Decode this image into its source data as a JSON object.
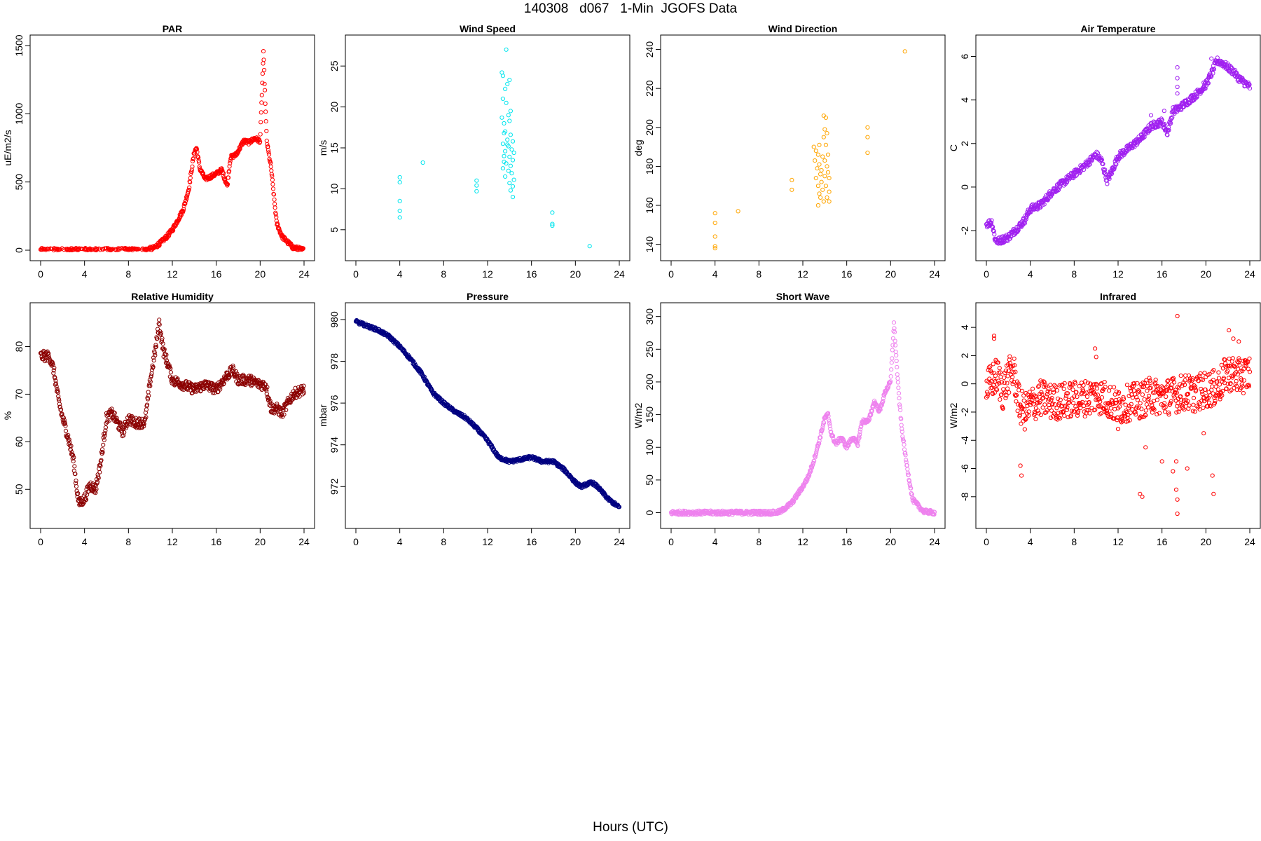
{
  "page_title": "140308   d067   1-Min  JGOFS Data",
  "x_label": "Hours (UTC)",
  "chart_data": [
    {
      "type": "scatter",
      "title": "PAR",
      "ylabel": "uE/m2/s",
      "color": "#ff0000",
      "xlim": [
        0,
        24
      ],
      "ylim": [
        0,
        1500
      ],
      "xticks": [
        0,
        4,
        8,
        12,
        16,
        20,
        24
      ],
      "yticks": [
        0,
        500,
        1000,
        1500
      ],
      "curve": [
        [
          0,
          0
        ],
        [
          9.5,
          0
        ],
        [
          10.3,
          15
        ],
        [
          11,
          60
        ],
        [
          11.5,
          100
        ],
        [
          12,
          150
        ],
        [
          12.5,
          220
        ],
        [
          13,
          300
        ],
        [
          13.5,
          450
        ],
        [
          14,
          720
        ],
        [
          14.2,
          750
        ],
        [
          14.5,
          600
        ],
        [
          15,
          520
        ],
        [
          15.5,
          540
        ],
        [
          16,
          560
        ],
        [
          16.5,
          590
        ],
        [
          17,
          470
        ],
        [
          17.3,
          680
        ],
        [
          17.8,
          700
        ],
        [
          18.5,
          800
        ],
        [
          19,
          790
        ],
        [
          19.5,
          820
        ],
        [
          20,
          800
        ],
        [
          20.3,
          1450
        ],
        [
          20.6,
          800
        ],
        [
          21,
          600
        ],
        [
          21.5,
          200
        ],
        [
          22,
          100
        ],
        [
          23,
          20
        ],
        [
          24,
          0
        ]
      ]
    },
    {
      "type": "scatter",
      "title": "Wind Speed",
      "ylabel": "m/s",
      "color": "#00e5ee",
      "xlim": [
        0,
        24
      ],
      "ylim": [
        2.5,
        27.5
      ],
      "xticks": [
        0,
        4,
        8,
        12,
        16,
        20,
        24
      ],
      "yticks": [
        5,
        10,
        15,
        20,
        25
      ],
      "points": [
        [
          4.0,
          11.4
        ],
        [
          4.0,
          10.8
        ],
        [
          4.0,
          8.5
        ],
        [
          4.0,
          7.3
        ],
        [
          4.0,
          6.5
        ],
        [
          6.1,
          13.2
        ],
        [
          11.0,
          11.0
        ],
        [
          11.0,
          10.4
        ],
        [
          11.0,
          9.7
        ],
        [
          13.3,
          24.2
        ],
        [
          13.4,
          23.8
        ],
        [
          13.6,
          22.2
        ],
        [
          13.4,
          21.0
        ],
        [
          13.8,
          22.8
        ],
        [
          14.0,
          23.3
        ],
        [
          13.7,
          20.5
        ],
        [
          14.1,
          19.5
        ],
        [
          13.9,
          19.0
        ],
        [
          14.0,
          18.3
        ],
        [
          13.5,
          18.0
        ],
        [
          13.6,
          17.0
        ],
        [
          14.1,
          16.6
        ],
        [
          13.8,
          16.0
        ],
        [
          14.3,
          15.8
        ],
        [
          13.4,
          15.5
        ],
        [
          13.9,
          15.2
        ],
        [
          14.2,
          14.8
        ],
        [
          13.6,
          14.6
        ],
        [
          14.4,
          14.4
        ],
        [
          13.5,
          14.0
        ],
        [
          14.0,
          13.9
        ],
        [
          14.3,
          13.5
        ],
        [
          13.7,
          13.1
        ],
        [
          14.1,
          12.8
        ],
        [
          13.4,
          12.5
        ],
        [
          13.9,
          12.2
        ],
        [
          14.2,
          11.9
        ],
        [
          13.6,
          11.5
        ],
        [
          14.4,
          11.1
        ],
        [
          14.0,
          10.7
        ],
        [
          14.3,
          10.3
        ],
        [
          14.1,
          9.8
        ],
        [
          14.3,
          9.0
        ],
        [
          13.3,
          18.7
        ],
        [
          13.5,
          16.8
        ],
        [
          13.8,
          15.4
        ],
        [
          13.5,
          13.3
        ],
        [
          13.7,
          27.0
        ],
        [
          17.9,
          7.1
        ],
        [
          17.9,
          5.7
        ],
        [
          17.9,
          5.5
        ],
        [
          21.3,
          3.0
        ]
      ]
    },
    {
      "type": "scatter",
      "title": "Wind Direction",
      "ylabel": "deg",
      "color": "#ffa500",
      "xlim": [
        0,
        24
      ],
      "ylim": [
        137,
        242
      ],
      "xticks": [
        0,
        4,
        8,
        12,
        16,
        20,
        24
      ],
      "yticks": [
        140,
        160,
        180,
        200,
        220,
        240
      ],
      "points": [
        [
          4.0,
          156
        ],
        [
          4.0,
          151
        ],
        [
          4.0,
          144
        ],
        [
          4.0,
          139
        ],
        [
          4.0,
          138
        ],
        [
          6.1,
          157
        ],
        [
          11.0,
          173
        ],
        [
          11.0,
          168
        ],
        [
          13.0,
          190
        ],
        [
          13.2,
          188
        ],
        [
          13.4,
          186
        ],
        [
          13.1,
          183
        ],
        [
          13.5,
          181
        ],
        [
          13.3,
          179
        ],
        [
          13.6,
          176
        ],
        [
          13.2,
          174
        ],
        [
          13.7,
          172
        ],
        [
          13.4,
          170
        ],
        [
          13.8,
          168
        ],
        [
          13.5,
          166
        ],
        [
          13.6,
          164
        ],
        [
          13.9,
          162
        ],
        [
          13.4,
          160
        ],
        [
          13.7,
          178
        ],
        [
          13.9,
          195
        ],
        [
          14.0,
          199
        ],
        [
          14.1,
          205
        ],
        [
          13.9,
          206
        ],
        [
          14.2,
          197
        ],
        [
          14.1,
          191
        ],
        [
          14.3,
          186
        ],
        [
          14.0,
          183
        ],
        [
          14.2,
          180
        ],
        [
          14.3,
          177
        ],
        [
          14.4,
          174
        ],
        [
          14.1,
          170
        ],
        [
          14.4,
          167
        ],
        [
          14.2,
          164
        ],
        [
          14.4,
          162
        ],
        [
          13.8,
          185
        ],
        [
          13.5,
          191
        ],
        [
          14.0,
          175
        ],
        [
          17.9,
          200
        ],
        [
          17.9,
          195
        ],
        [
          17.9,
          187
        ],
        [
          21.3,
          239
        ]
      ]
    },
    {
      "type": "scatter",
      "title": "Air Temperature",
      "ylabel": "C",
      "color": "#a020f0",
      "xlim": [
        0,
        24
      ],
      "ylim": [
        -2.9,
        6.5
      ],
      "xticks": [
        0,
        4,
        8,
        12,
        16,
        20,
        24
      ],
      "yticks": [
        -2,
        0,
        2,
        4,
        6
      ],
      "curve": [
        [
          0,
          -1.7
        ],
        [
          0.5,
          -1.6
        ],
        [
          0.8,
          -2.4
        ],
        [
          1,
          -2.5
        ],
        [
          2,
          -2.3
        ],
        [
          3,
          -1.8
        ],
        [
          3.5,
          -1.5
        ],
        [
          4,
          -1.0
        ],
        [
          5,
          -0.8
        ],
        [
          6,
          -0.2
        ],
        [
          7,
          0.2
        ],
        [
          8,
          0.6
        ],
        [
          9,
          1.0
        ],
        [
          10,
          1.5
        ],
        [
          10.5,
          1.2
        ],
        [
          11,
          0.3
        ],
        [
          11.5,
          0.8
        ],
        [
          12,
          1.4
        ],
        [
          13,
          1.8
        ],
        [
          14,
          2.2
        ],
        [
          15,
          2.8
        ],
        [
          16,
          3.0
        ],
        [
          16.5,
          2.5
        ],
        [
          17,
          3.5
        ],
        [
          17.5,
          3.6
        ],
        [
          18,
          3.8
        ],
        [
          19,
          4.2
        ],
        [
          20,
          4.7
        ],
        [
          20.5,
          5.2
        ],
        [
          21,
          5.8
        ],
        [
          21.5,
          5.7
        ],
        [
          22,
          5.5
        ],
        [
          22.5,
          5.3
        ],
        [
          23,
          5.0
        ],
        [
          24,
          4.6
        ]
      ],
      "outliers": [
        [
          17.4,
          5.5
        ],
        [
          17.4,
          5.0
        ],
        [
          17.4,
          4.6
        ],
        [
          17.4,
          4.3
        ],
        [
          15.0,
          3.3
        ],
        [
          16.2,
          3.5
        ],
        [
          19.8,
          4.8
        ],
        [
          20.5,
          5.9
        ]
      ]
    },
    {
      "type": "scatter",
      "title": "Relative Humidity",
      "ylabel": "%",
      "color": "#8b0000",
      "xlim": [
        0,
        24
      ],
      "ylim": [
        44,
        87
      ],
      "xticks": [
        0,
        4,
        8,
        12,
        16,
        20,
        24
      ],
      "yticks": [
        50,
        60,
        70,
        80
      ],
      "curve": [
        [
          0,
          78
        ],
        [
          0.5,
          78
        ],
        [
          0.8,
          78
        ],
        [
          1.2,
          75
        ],
        [
          1.6,
          69
        ],
        [
          2,
          65
        ],
        [
          2.5,
          61
        ],
        [
          3,
          56
        ],
        [
          3.3,
          50
        ],
        [
          3.5,
          47
        ],
        [
          4,
          48
        ],
        [
          4.5,
          51
        ],
        [
          5,
          50
        ],
        [
          5.5,
          56
        ],
        [
          6,
          65
        ],
        [
          6.5,
          66
        ],
        [
          7,
          64
        ],
        [
          7.5,
          62
        ],
        [
          8,
          65
        ],
        [
          8.5,
          64
        ],
        [
          9,
          64
        ],
        [
          9.5,
          64
        ],
        [
          10,
          73
        ],
        [
          10.5,
          80
        ],
        [
          10.8,
          85
        ],
        [
          11.2,
          79
        ],
        [
          11.5,
          77
        ],
        [
          12,
          73
        ],
        [
          13,
          72
        ],
        [
          14,
          71
        ],
        [
          15,
          72
        ],
        [
          16,
          71
        ],
        [
          17,
          74
        ],
        [
          17.5,
          75
        ],
        [
          18,
          73
        ],
        [
          19,
          73
        ],
        [
          20,
          72
        ],
        [
          20.5,
          72
        ],
        [
          21,
          67
        ],
        [
          21.5,
          67
        ],
        [
          22,
          66
        ],
        [
          22.5,
          68
        ],
        [
          23,
          70
        ],
        [
          24,
          71
        ]
      ]
    },
    {
      "type": "scatter",
      "title": "Pressure",
      "ylabel": "mbar",
      "color": "#000080",
      "xlim": [
        0,
        24
      ],
      "ylim": [
        970.5,
        980.3
      ],
      "xticks": [
        0,
        4,
        8,
        12,
        16,
        20,
        24
      ],
      "yticks": [
        972,
        974,
        976,
        978,
        980
      ],
      "curve": [
        [
          0,
          979.9
        ],
        [
          1,
          979.7
        ],
        [
          2,
          979.5
        ],
        [
          3,
          979.2
        ],
        [
          4,
          978.7
        ],
        [
          5,
          978.1
        ],
        [
          6,
          977.4
        ],
        [
          7,
          976.5
        ],
        [
          8,
          976.0
        ],
        [
          9,
          975.6
        ],
        [
          10,
          975.3
        ],
        [
          11,
          974.8
        ],
        [
          12,
          974.2
        ],
        [
          13,
          973.4
        ],
        [
          14,
          973.2
        ],
        [
          15,
          973.3
        ],
        [
          16,
          973.4
        ],
        [
          17,
          973.2
        ],
        [
          18,
          973.2
        ],
        [
          19,
          972.8
        ],
        [
          20,
          972.2
        ],
        [
          20.5,
          972.0
        ],
        [
          21,
          972.1
        ],
        [
          21.5,
          972.2
        ],
        [
          22,
          972.0
        ],
        [
          23,
          971.4
        ],
        [
          24,
          971.0
        ]
      ]
    },
    {
      "type": "scatter",
      "title": "Short Wave",
      "ylabel": "W/m2",
      "color": "#ee82ee",
      "xlim": [
        0,
        24
      ],
      "ylim": [
        -8,
        305
      ],
      "xticks": [
        0,
        4,
        8,
        12,
        16,
        20,
        24
      ],
      "yticks": [
        0,
        50,
        100,
        150,
        200,
        250,
        300
      ],
      "curve": [
        [
          0,
          0
        ],
        [
          9.5,
          0
        ],
        [
          10,
          2
        ],
        [
          11,
          15
        ],
        [
          12,
          40
        ],
        [
          12.5,
          55
        ],
        [
          13,
          80
        ],
        [
          13.5,
          110
        ],
        [
          14,
          145
        ],
        [
          14.3,
          150
        ],
        [
          14.6,
          120
        ],
        [
          15,
          105
        ],
        [
          15.5,
          115
        ],
        [
          16,
          100
        ],
        [
          16.5,
          115
        ],
        [
          17,
          105
        ],
        [
          17.4,
          140
        ],
        [
          18,
          140
        ],
        [
          18.5,
          170
        ],
        [
          19,
          155
        ],
        [
          19.5,
          185
        ],
        [
          20,
          200
        ],
        [
          20.3,
          290
        ],
        [
          20.7,
          190
        ],
        [
          21,
          130
        ],
        [
          21.4,
          80
        ],
        [
          22,
          20
        ],
        [
          23,
          2
        ],
        [
          24,
          0
        ]
      ]
    },
    {
      "type": "scatter",
      "title": "Infrared",
      "ylabel": "W/m2",
      "color": "#ff0000",
      "xlim": [
        0,
        24
      ],
      "ylim": [
        -9.5,
        5.0
      ],
      "xticks": [
        0,
        4,
        8,
        12,
        16,
        20,
        24
      ],
      "yticks": [
        -8,
        -6,
        -4,
        -2,
        0,
        2,
        4
      ],
      "curve": [
        [
          0,
          -0.3
        ],
        [
          0.5,
          0.2
        ],
        [
          1,
          0.6
        ],
        [
          1.5,
          -0.6
        ],
        [
          2,
          0.6
        ],
        [
          2.5,
          0.8
        ],
        [
          3,
          -1.5
        ],
        [
          3.5,
          -2.0
        ],
        [
          4,
          -1.5
        ],
        [
          5,
          -1.0
        ],
        [
          6,
          -1.3
        ],
        [
          7,
          -1.2
        ],
        [
          8,
          -1.1
        ],
        [
          9,
          -1.0
        ],
        [
          10,
          -0.8
        ],
        [
          11,
          -1.1
        ],
        [
          12,
          -1.7
        ],
        [
          13,
          -1.3
        ],
        [
          14,
          -1.2
        ],
        [
          15,
          -0.8
        ],
        [
          16,
          -1.0
        ],
        [
          17,
          -0.8
        ],
        [
          18,
          -0.6
        ],
        [
          19,
          -0.7
        ],
        [
          20,
          -0.4
        ],
        [
          21,
          -0.3
        ],
        [
          22,
          0.8
        ],
        [
          23,
          0.5
        ],
        [
          24,
          0.8
        ]
      ],
      "outliers": [
        [
          0.7,
          3.2
        ],
        [
          0.7,
          3.4
        ],
        [
          17.4,
          4.8
        ],
        [
          17.4,
          -8.2
        ],
        [
          17.4,
          -9.2
        ],
        [
          17.3,
          -7.5
        ],
        [
          17.3,
          -5.5
        ],
        [
          14.2,
          -8.0
        ],
        [
          14.0,
          -7.8
        ],
        [
          20.7,
          -7.8
        ],
        [
          20.6,
          -6.5
        ],
        [
          3.2,
          -6.5
        ],
        [
          3.1,
          -5.8
        ],
        [
          18.3,
          -6.0
        ],
        [
          16.0,
          -5.5
        ],
        [
          14.5,
          -4.5
        ],
        [
          17.0,
          -6.2
        ],
        [
          9.9,
          2.5
        ],
        [
          10.0,
          1.9
        ],
        [
          22.1,
          3.8
        ],
        [
          22.5,
          3.2
        ],
        [
          23.0,
          3.0
        ],
        [
          19.8,
          -3.5
        ],
        [
          12.0,
          -3.2
        ]
      ]
    }
  ]
}
